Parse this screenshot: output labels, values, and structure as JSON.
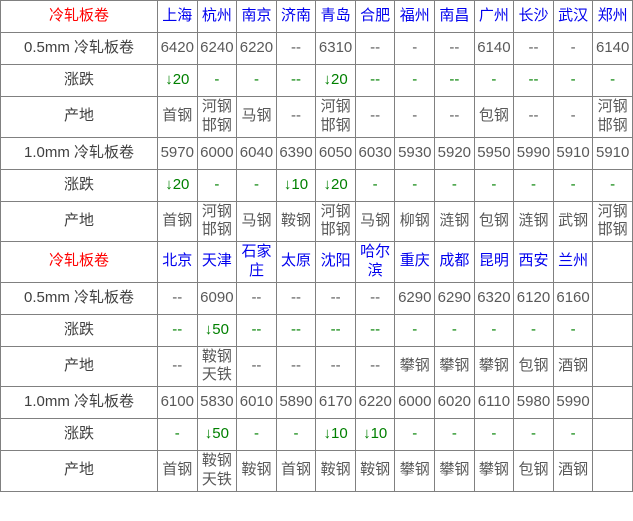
{
  "colors": {
    "section_title": "#ff0000",
    "city_link": "#0000ee",
    "value_text": "#595959",
    "change_text": "#008000",
    "row_label_text": "#404040",
    "grid_border": "#808080",
    "background": "#ffffff"
  },
  "table": {
    "sections": [
      {
        "title": "冷轧板卷",
        "cities": [
          "上海",
          "杭州",
          "南京",
          "济南",
          "青岛",
          "合肥",
          "福州",
          "南昌",
          "广州",
          "长沙",
          "武汉",
          "郑州"
        ],
        "rows": [
          {
            "label": "0.5mm 冷轧板卷",
            "type": "price",
            "cells": [
              "6420",
              "6240",
              "6220",
              "--",
              "6310",
              "--",
              "-",
              "--",
              "6140",
              "--",
              "-",
              "6140"
            ]
          },
          {
            "label": "涨跌",
            "type": "change",
            "cells": [
              "↓20",
              "-",
              "-",
              "--",
              "↓20",
              "--",
              "-",
              "--",
              "-",
              "--",
              "-",
              "-"
            ]
          },
          {
            "label": "产地",
            "type": "origin",
            "cells": [
              "首钢",
              "河钢\n邯钢",
              "马钢",
              "--",
              "河钢\n邯钢",
              "--",
              "-",
              "--",
              "包钢",
              "--",
              "-",
              "河钢\n邯钢"
            ]
          },
          {
            "label": "1.0mm 冷轧板卷",
            "type": "price",
            "cells": [
              "5970",
              "6000",
              "6040",
              "6390",
              "6050",
              "6030",
              "5930",
              "5920",
              "5950",
              "5990",
              "5910",
              "5910"
            ]
          },
          {
            "label": "涨跌",
            "type": "change",
            "cells": [
              "↓20",
              "-",
              "-",
              "↓10",
              "↓20",
              "-",
              "-",
              "-",
              "-",
              "-",
              "-",
              "-"
            ]
          },
          {
            "label": "产地",
            "type": "origin",
            "cells": [
              "首钢",
              "河钢\n邯钢",
              "马钢",
              "鞍钢",
              "河钢\n邯钢",
              "马钢",
              "柳钢",
              "涟钢",
              "包钢",
              "涟钢",
              "武钢",
              "河钢\n邯钢"
            ]
          }
        ]
      },
      {
        "title": "冷轧板卷",
        "cities": [
          "北京",
          "天津",
          "石家\n庄",
          "太原",
          "沈阳",
          "哈尔\n滨",
          "重庆",
          "成都",
          "昆明",
          "西安",
          "兰州",
          ""
        ],
        "rows": [
          {
            "label": "0.5mm 冷轧板卷",
            "type": "price",
            "cells": [
              "--",
              "6090",
              "--",
              "--",
              "--",
              "--",
              "6290",
              "6290",
              "6320",
              "6120",
              "6160",
              ""
            ]
          },
          {
            "label": "涨跌",
            "type": "change",
            "cells": [
              "--",
              "↓50",
              "--",
              "--",
              "--",
              "--",
              "-",
              "-",
              "-",
              "-",
              "-",
              ""
            ]
          },
          {
            "label": "产地",
            "type": "origin",
            "cells": [
              "--",
              "鞍钢\n天铁",
              "--",
              "--",
              "--",
              "--",
              "攀钢",
              "攀钢",
              "攀钢",
              "包钢",
              "酒钢",
              ""
            ]
          },
          {
            "label": "1.0mm 冷轧板卷",
            "type": "price",
            "cells": [
              "6100",
              "5830",
              "6010",
              "5890",
              "6170",
              "6220",
              "6000",
              "6020",
              "6110",
              "5980",
              "5990",
              ""
            ]
          },
          {
            "label": "涨跌",
            "type": "change",
            "cells": [
              "-",
              "↓50",
              "-",
              "-",
              "↓10",
              "↓10",
              "-",
              "-",
              "-",
              "-",
              "-",
              ""
            ]
          },
          {
            "label": "产地",
            "type": "origin",
            "cells": [
              "首钢",
              "鞍钢\n天铁",
              "鞍钢",
              "首钢",
              "鞍钢",
              "鞍钢",
              "攀钢",
              "攀钢",
              "攀钢",
              "包钢",
              "酒钢",
              ""
            ]
          }
        ]
      }
    ]
  }
}
